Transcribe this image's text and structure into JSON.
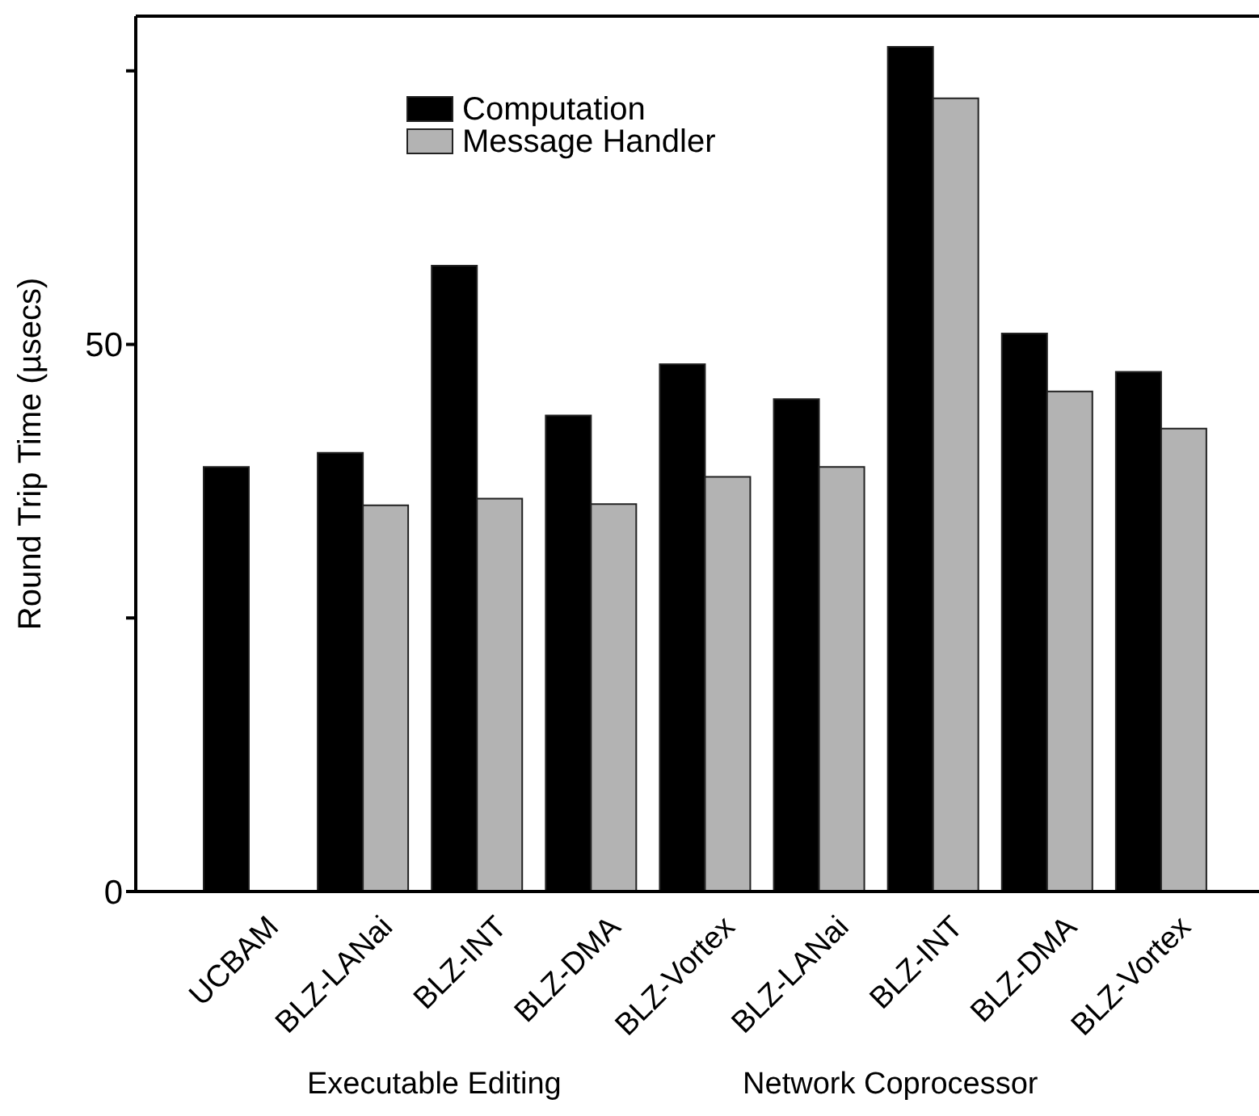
{
  "chart_data": {
    "type": "bar",
    "ylabel": "Round Trip Time (µsecs)",
    "categories": [
      "UCBAM",
      "BLZ-LANai",
      "BLZ-INT",
      "BLZ-DMA",
      "BLZ-Vortex",
      "BLZ-LANai",
      "BLZ-INT",
      "BLZ-DMA",
      "BLZ-Vortex"
    ],
    "series": [
      {
        "name": "Computation",
        "color": "#000000",
        "values": [
          38.8,
          40.1,
          57.2,
          43.5,
          48.2,
          45.0,
          77.2,
          51.0,
          47.5
        ]
      },
      {
        "name": "Message Handler",
        "color": "#b3b3b3",
        "values": [
          null,
          35.3,
          35.9,
          35.4,
          37.9,
          38.8,
          72.5,
          45.7,
          42.3
        ]
      }
    ],
    "ylim": [
      0,
      80
    ],
    "yticks": [
      0,
      {
        "value": 25,
        "label": null
      },
      50,
      {
        "value": 75,
        "label": null
      }
    ],
    "legend": "top left",
    "annotations": [
      "Executable Editing",
      "Network Coprocessor"
    ]
  }
}
